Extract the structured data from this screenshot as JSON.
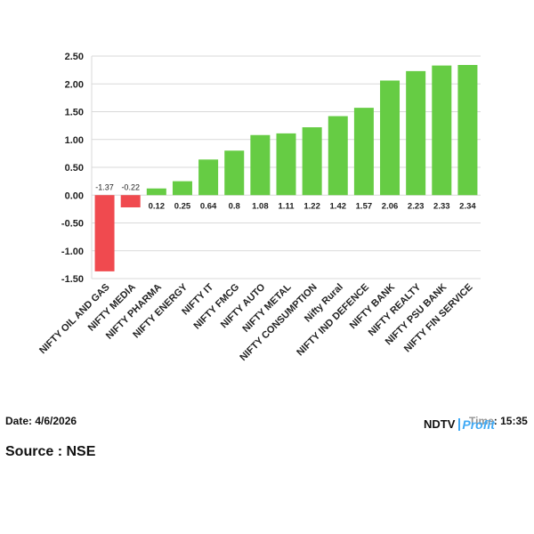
{
  "chart_data": {
    "type": "bar",
    "categories": [
      "NIFTY OIL AND GAS",
      "NIFTY MEDIA",
      "NIFTY PHARMA",
      "NIFTY ENERGY",
      "NIFTY IT",
      "NIFTY FMCG",
      "NIFTY AUTO",
      "NIFTY METAL",
      "NIFTY CONSUMPTION",
      "Nifty Rural",
      "NIFTY IND DEFENCE",
      "NIFTY BANK",
      "NIFTY REALTY",
      "NIFTY PSU BANK",
      "NIFTY FIN SERVICE"
    ],
    "values": [
      -1.37,
      -0.22,
      0.12,
      0.25,
      0.64,
      0.8,
      1.08,
      1.11,
      1.22,
      1.42,
      1.57,
      2.06,
      2.23,
      2.33,
      2.34
    ],
    "value_labels": [
      "-1.37",
      "-0.22",
      "0.12",
      "0.25",
      "0.64",
      "0.8",
      "1.08",
      "1.11",
      "1.22",
      "1.42",
      "1.57",
      "2.06",
      "2.23",
      "2.33",
      "2.34"
    ],
    "yticks": [
      "2.50",
      "2.00",
      "1.50",
      "1.00",
      "0.50",
      "0.00",
      "-0.50",
      "-1.00",
      "-1.50"
    ],
    "ytick_values": [
      2.5,
      2.0,
      1.5,
      1.0,
      0.5,
      0.0,
      -0.5,
      -1.0,
      -1.5
    ],
    "ylim": [
      -1.5,
      2.5
    ],
    "grid": true,
    "colors": {
      "positive": "#66cc44",
      "negative": "#f04a4f",
      "grid": "#d9d9d9",
      "axis": "#999999"
    }
  },
  "footer": {
    "date_label": "Date: 4/6/2026",
    "source_label": "Source : NSE",
    "time_label": "Time: 15:35"
  },
  "brand": {
    "name": "NDTV",
    "sub": "Profit"
  }
}
